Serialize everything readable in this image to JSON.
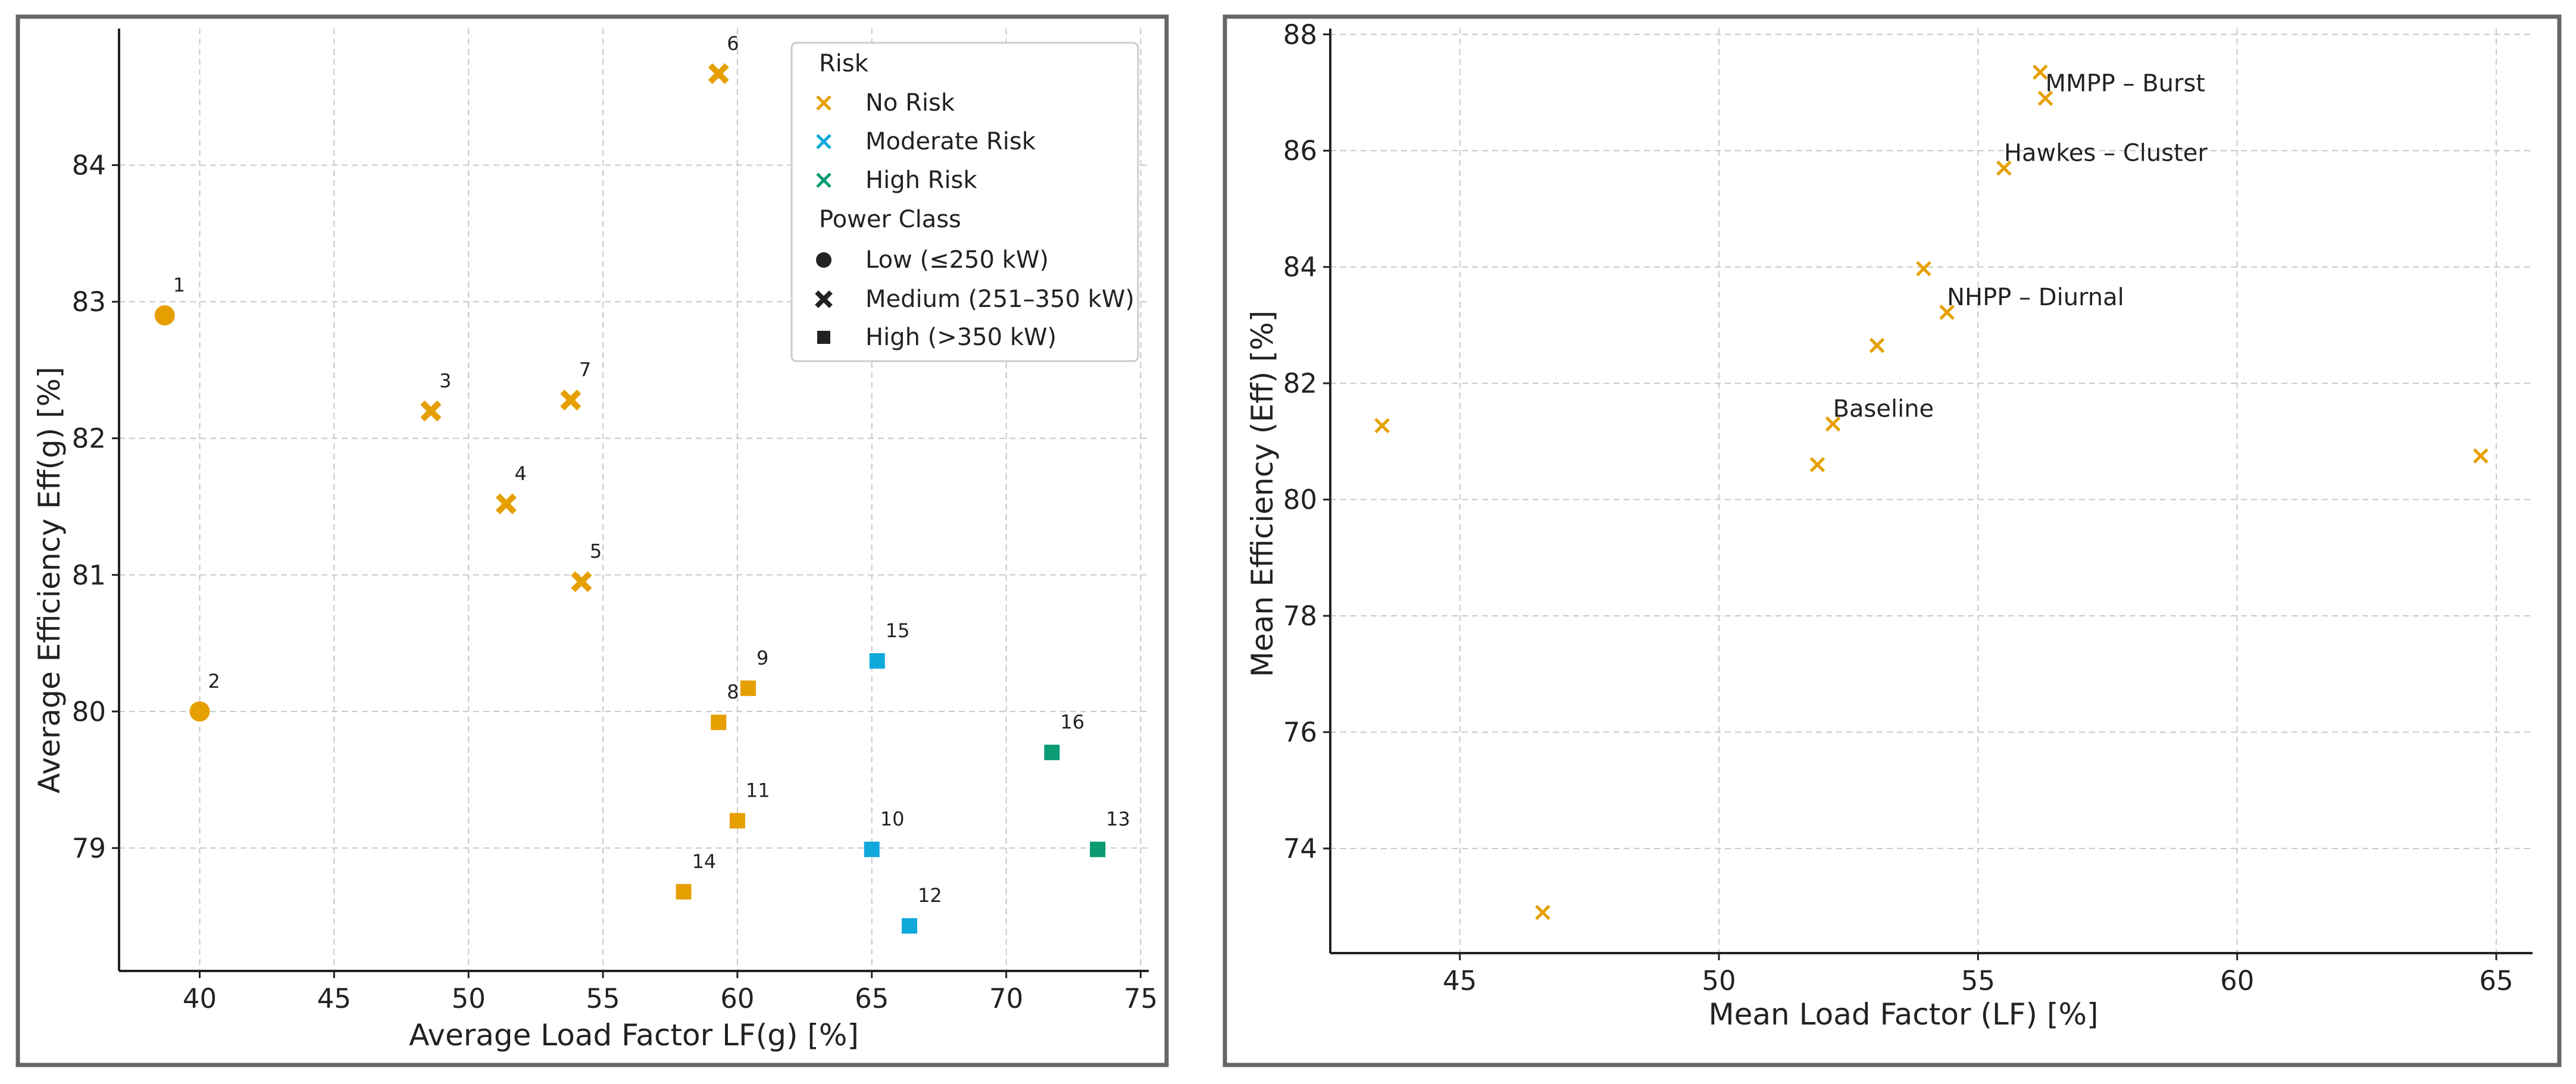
{
  "colors": {
    "no_risk": "#E69F00",
    "moderate_risk": "#0FA8DB",
    "high_risk": "#0A9B73"
  },
  "chart_data": [
    {
      "type": "scatter",
      "xlabel": "Average Load Factor LF(g) [%]",
      "ylabel": "Average Efficiency Eff(g) [%]",
      "xlim": [
        37,
        75.3
      ],
      "ylim": [
        78.1,
        85.0
      ],
      "xticks": [
        40,
        45,
        50,
        55,
        60,
        65,
        70,
        75
      ],
      "yticks": [
        79,
        80,
        81,
        82,
        83,
        84
      ],
      "grid": true,
      "legend": {
        "position": "top-right",
        "risk_title": "Risk",
        "risk_items": [
          {
            "label": "No Risk",
            "color_key": "no_risk"
          },
          {
            "label": "Moderate Risk",
            "color_key": "moderate_risk"
          },
          {
            "label": "High Risk",
            "color_key": "high_risk"
          }
        ],
        "power_title": "Power Class",
        "power_items": [
          {
            "label": "Low (≤250 kW)",
            "marker": "circle"
          },
          {
            "label": "Medium (251–350 kW)",
            "marker": "x"
          },
          {
            "label": "High (>350 kW)",
            "marker": "square"
          }
        ]
      },
      "points": [
        {
          "id": "1",
          "x": 38.7,
          "y": 82.9,
          "risk": "no_risk",
          "power": "circle"
        },
        {
          "id": "2",
          "x": 40.0,
          "y": 80.0,
          "risk": "no_risk",
          "power": "circle"
        },
        {
          "id": "3",
          "x": 48.6,
          "y": 82.2,
          "risk": "no_risk",
          "power": "x"
        },
        {
          "id": "4",
          "x": 51.4,
          "y": 81.52,
          "risk": "no_risk",
          "power": "x"
        },
        {
          "id": "5",
          "x": 54.2,
          "y": 80.95,
          "risk": "no_risk",
          "power": "x"
        },
        {
          "id": "6",
          "x": 59.3,
          "y": 84.67,
          "risk": "no_risk",
          "power": "x"
        },
        {
          "id": "7",
          "x": 53.8,
          "y": 82.28,
          "risk": "no_risk",
          "power": "x"
        },
        {
          "id": "8",
          "x": 59.3,
          "y": 79.92,
          "risk": "no_risk",
          "power": "square"
        },
        {
          "id": "9",
          "x": 60.4,
          "y": 80.17,
          "risk": "no_risk",
          "power": "square"
        },
        {
          "id": "10",
          "x": 65.0,
          "y": 78.99,
          "risk": "moderate_risk",
          "power": "square"
        },
        {
          "id": "11",
          "x": 60.0,
          "y": 79.2,
          "risk": "no_risk",
          "power": "square"
        },
        {
          "id": "12",
          "x": 66.4,
          "y": 78.43,
          "risk": "moderate_risk",
          "power": "square"
        },
        {
          "id": "13",
          "x": 73.4,
          "y": 78.99,
          "risk": "high_risk",
          "power": "square"
        },
        {
          "id": "14",
          "x": 58.0,
          "y": 78.68,
          "risk": "no_risk",
          "power": "square"
        },
        {
          "id": "15",
          "x": 65.2,
          "y": 80.37,
          "risk": "moderate_risk",
          "power": "square"
        },
        {
          "id": "16",
          "x": 71.7,
          "y": 79.7,
          "risk": "high_risk",
          "power": "square"
        }
      ]
    },
    {
      "type": "scatter",
      "xlabel": "Mean Load Factor (LF) [%]",
      "ylabel": "Mean Efficiency (Eff) [%]",
      "xlim": [
        42.5,
        65.7
      ],
      "ylim": [
        72.2,
        88.1
      ],
      "xticks": [
        45,
        50,
        55,
        60,
        65
      ],
      "yticks": [
        74,
        76,
        78,
        80,
        82,
        84,
        86,
        88
      ],
      "grid": true,
      "points": [
        {
          "x": 43.5,
          "y": 81.27,
          "label": ""
        },
        {
          "x": 46.6,
          "y": 72.9,
          "label": ""
        },
        {
          "x": 51.9,
          "y": 80.6,
          "label": ""
        },
        {
          "x": 52.2,
          "y": 81.3,
          "label": "Baseline"
        },
        {
          "x": 53.05,
          "y": 82.65,
          "label": ""
        },
        {
          "x": 53.95,
          "y": 83.97,
          "label": ""
        },
        {
          "x": 54.4,
          "y": 83.22,
          "label": "NHPP – Diurnal"
        },
        {
          "x": 55.5,
          "y": 85.7,
          "label": "Hawkes – Cluster"
        },
        {
          "x": 56.2,
          "y": 87.35,
          "label": ""
        },
        {
          "x": 56.3,
          "y": 86.9,
          "label": "MMPP – Burst"
        },
        {
          "x": 64.7,
          "y": 80.75,
          "label": ""
        }
      ]
    }
  ]
}
